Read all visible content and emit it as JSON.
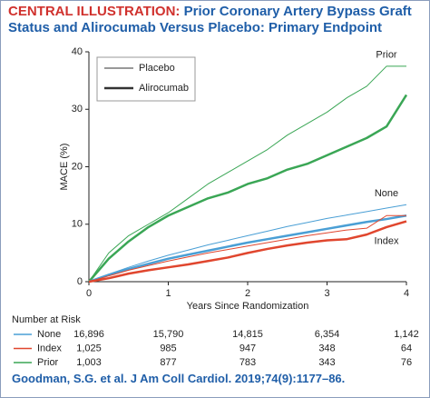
{
  "chart_data": {
    "type": "line",
    "title_label": "CENTRAL ILLUSTRATION:",
    "title": "Prior Coronary Artery Bypass Graft Status and Alirocumab Versus Placebo: Primary Endpoint",
    "x_label": "Years Since Randomization",
    "y_label": "MACE (%)",
    "x": [
      0,
      0.25,
      0.5,
      0.75,
      1,
      1.25,
      1.5,
      1.75,
      2,
      2.25,
      2.5,
      2.75,
      3,
      3.25,
      3.5,
      3.75,
      4
    ],
    "xlim": [
      0,
      4
    ],
    "xticks": [
      0,
      1,
      2,
      3,
      4
    ],
    "ylim": [
      0,
      40
    ],
    "yticks": [
      0,
      10,
      20,
      30,
      40
    ],
    "legend": [
      {
        "name": "Placebo",
        "width": 1
      },
      {
        "name": "Alirocumab",
        "width": 2.5
      }
    ],
    "series": [
      {
        "name": "Prior",
        "color": "#3aa655",
        "placebo": [
          0,
          5,
          8,
          10,
          12,
          14.5,
          17,
          19,
          21,
          23,
          25.5,
          27.5,
          29.5,
          32,
          34,
          37.5,
          37.5
        ],
        "alirocumab": [
          0,
          4,
          7,
          9.5,
          11.5,
          13,
          14.5,
          15.5,
          17,
          18,
          19.5,
          20.5,
          22,
          23.5,
          25,
          27,
          32.5
        ]
      },
      {
        "name": "None",
        "color": "#4a9fd5",
        "placebo": [
          0,
          1.3,
          2.5,
          3.6,
          4.6,
          5.5,
          6.4,
          7.2,
          8,
          8.8,
          9.6,
          10.3,
          11,
          11.6,
          12.2,
          12.8,
          13.4
        ],
        "alirocumab": [
          0,
          1.2,
          2.2,
          3.1,
          4,
          4.7,
          5.4,
          6.1,
          6.8,
          7.4,
          8,
          8.6,
          9.2,
          9.8,
          10.4,
          10.9,
          11.5
        ]
      },
      {
        "name": "Index",
        "color": "#e0462e",
        "placebo": [
          0,
          1,
          2,
          2.8,
          3.6,
          4.3,
          5,
          5.6,
          6.2,
          6.8,
          7.4,
          8,
          8.5,
          9,
          9.3,
          11.5,
          11.5
        ],
        "alirocumab": [
          0,
          0.6,
          1.4,
          2,
          2.5,
          3,
          3.6,
          4.2,
          5,
          5.7,
          6.3,
          6.8,
          7.2,
          7.4,
          8.2,
          9.5,
          10.5
        ]
      }
    ]
  },
  "risk_table": {
    "title": "Number at Risk",
    "rows": [
      {
        "name": "None",
        "color": "#4a9fd5",
        "values": [
          "16,896",
          "15,790",
          "14,815",
          "6,354",
          "1,142"
        ]
      },
      {
        "name": "Index",
        "color": "#e0462e",
        "values": [
          "1,025",
          "985",
          "947",
          "348",
          "64"
        ]
      },
      {
        "name": "Prior",
        "color": "#3aa655",
        "values": [
          "1,003",
          "877",
          "783",
          "343",
          "76"
        ]
      }
    ]
  },
  "citation": "Goodman, S.G. et al. J Am Coll Cardiol. 2019;74(9):1177–86."
}
